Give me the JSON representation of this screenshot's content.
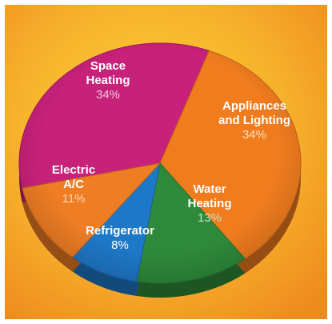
{
  "chart_data": {
    "type": "pie",
    "title": "",
    "slices": [
      {
        "label_lines": [
          "Space",
          "Heating"
        ],
        "value": 34,
        "value_label": "34%",
        "color": "#c8217a"
      },
      {
        "label_lines": [
          "Appliances",
          "and Lighting"
        ],
        "value": 34,
        "value_label": "34%",
        "color": "#f07c1e"
      },
      {
        "label_lines": [
          "Water",
          "Heating"
        ],
        "value": 13,
        "value_label": "13%",
        "color": "#2e8a3a"
      },
      {
        "label_lines": [
          "Refrigerator"
        ],
        "value": 8,
        "value_label": "8%",
        "color": "#1e78c8"
      },
      {
        "label_lines": [
          "Electric",
          "A/C"
        ],
        "value": 11,
        "value_label": "11%",
        "color": "#ee7d24"
      }
    ],
    "legend": "none",
    "label_placement": "inside"
  }
}
